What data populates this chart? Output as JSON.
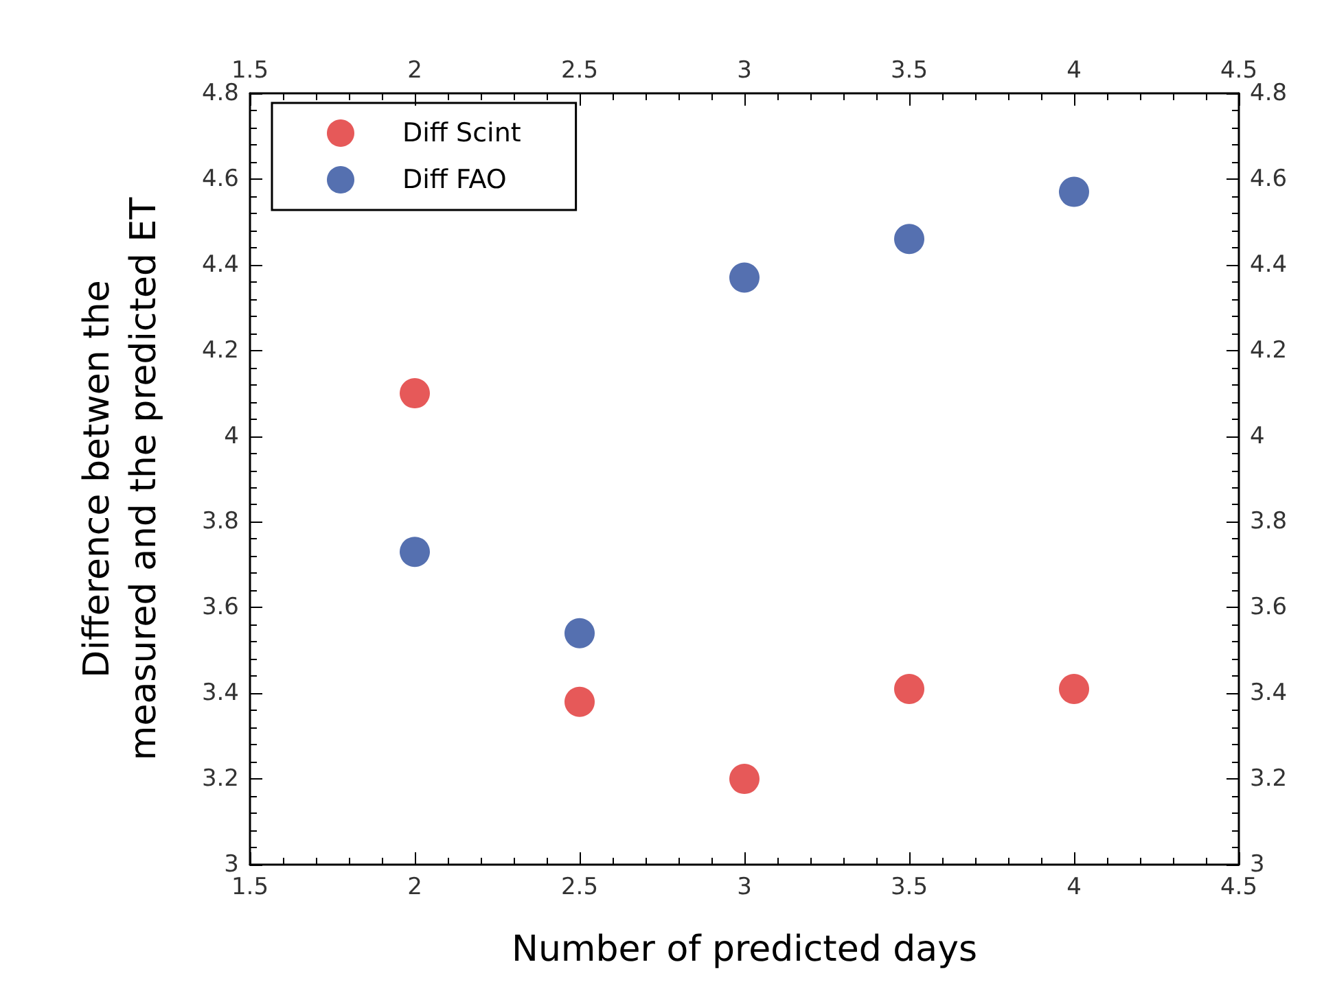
{
  "chart_data": {
    "type": "scatter",
    "xlabel": "Number of predicted days",
    "ylabel": "Difference betwen the measured and the predicted ET",
    "x": [
      2,
      2.5,
      3,
      3.5,
      4
    ],
    "series": [
      {
        "name": "Diff Scint",
        "color": "#e03030",
        "values": [
          4.1,
          3.38,
          3.2,
          3.41,
          3.41
        ]
      },
      {
        "name": "Diff FAO",
        "color": "#2b4c9c",
        "values": [
          3.73,
          3.54,
          4.37,
          4.46,
          4.57
        ]
      }
    ],
    "xlim": [
      1.5,
      4.5
    ],
    "xticks": [
      1.5,
      2,
      2.5,
      3,
      3.5,
      4,
      4.5
    ],
    "x2lim": [
      1.5,
      4.5
    ],
    "x2ticks": [
      1.5,
      2,
      2.5,
      3,
      3.5,
      4,
      4.5
    ],
    "ylim": [
      3,
      4.8
    ],
    "yticks": [
      3,
      3.2,
      3.4,
      3.6,
      3.8,
      4,
      4.2,
      4.4,
      4.6,
      4.8
    ],
    "y2lim": [
      3,
      4.8
    ],
    "y2ticks": [
      3,
      3.2,
      3.4,
      3.6,
      3.8,
      4,
      4.2,
      4.4,
      4.6,
      4.8
    ],
    "grid": false,
    "legend": "top left",
    "marker": "circle"
  }
}
